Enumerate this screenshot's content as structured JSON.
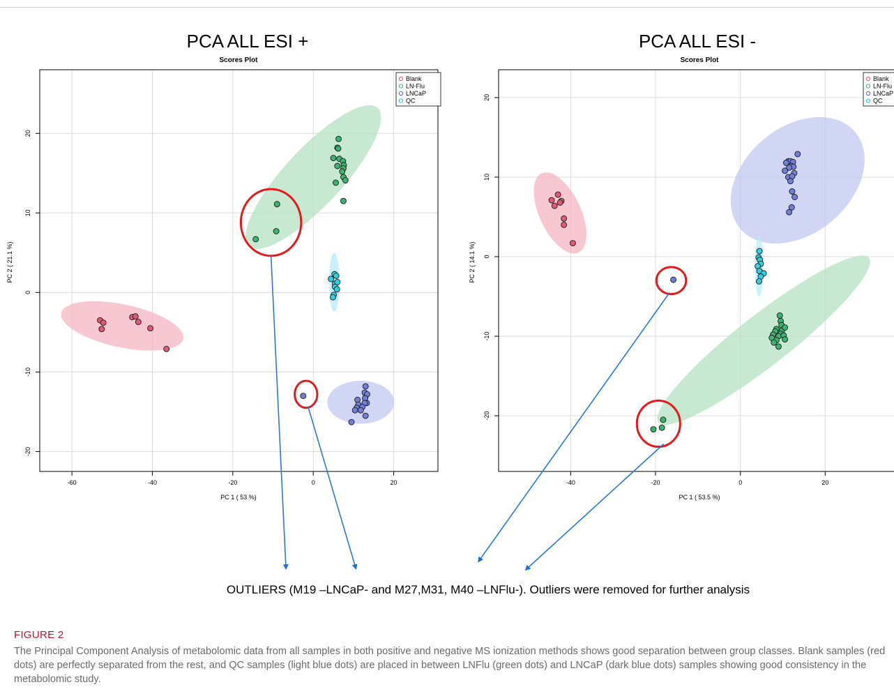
{
  "outliers_note": "OUTLIERS (M19 –LNCaP- and M27,M31, M40 –LNFlu-). Outliers were removed for further analysis",
  "figure": {
    "label": "FIGURE 2",
    "caption": "The Principal Component Analysis of metabolomic data from all samples in both positive and negative MS ionization methods shows good separation between group classes. Blank samples (red dots) are perfectly separated from the rest, and QC samples (light blue dots) are placed in between LNFlu (green dots) and LNCaP (dark blue dots) samples showing good consistency in the metabolomic study."
  },
  "chart_data": [
    {
      "type": "scatter",
      "title": "PCA ALL ESI +",
      "subtitle": "Scores Plot",
      "xlabel": "PC 1 ( 53 %)",
      "ylabel": "PC 2 ( 21.1 %)",
      "xlim": [
        -68,
        31
      ],
      "ylim": [
        -22.5,
        28
      ],
      "xticks": [
        -60,
        -40,
        -20,
        0,
        20
      ],
      "yticks": [
        -20,
        -10,
        0,
        10,
        20
      ],
      "grid": true,
      "legend": {
        "position": "top-right",
        "entries": [
          "Blank",
          "LN-Flu",
          "LNCaP",
          "QC"
        ]
      },
      "colors": {
        "Blank": {
          "point": "#e05a73",
          "ellipse": "#f4b6c2",
          "legend": "#e05a73"
        },
        "LN-Flu": {
          "point": "#3cb371",
          "ellipse": "#b5e2c2",
          "legend": "#3cb371"
        },
        "LNCaP": {
          "point": "#7080d8",
          "ellipse": "#c0c8f0",
          "legend": "#5060d0"
        },
        "QC": {
          "point": "#30d0e0",
          "ellipse": "#b8ecf4",
          "legend": "#20c0d8"
        }
      },
      "ellipses": [
        {
          "series": "Blank",
          "cx": -47.5,
          "cy": -4.2,
          "rx": 15.5,
          "ry": 2.7,
          "angle": -12
        },
        {
          "series": "LN-Flu",
          "cx": 0,
          "cy": 14.5,
          "rx": 23.5,
          "ry": 3.6,
          "angle": 47
        },
        {
          "series": "LNCaP",
          "cx": 11.8,
          "cy": -13.8,
          "rx": 8.3,
          "ry": 2.7,
          "angle": 0
        },
        {
          "series": "QC",
          "cx": 5.2,
          "cy": 1.3,
          "rx": 1.3,
          "ry": 3.7,
          "angle": 0
        }
      ],
      "series": [
        {
          "name": "Blank",
          "points": [
            [
              -53,
              -3.5
            ],
            [
              -52.2,
              -3.8
            ],
            [
              -52.6,
              -4.6
            ],
            [
              -45,
              -3.1
            ],
            [
              -44.2,
              -3
            ],
            [
              -43.5,
              -3.7
            ],
            [
              -40.5,
              -4.5
            ],
            [
              -36.5,
              -7.1
            ]
          ]
        },
        {
          "name": "LN-Flu",
          "points": [
            [
              6.3,
              19.3
            ],
            [
              6,
              18.2
            ],
            [
              6.2,
              18.1
            ],
            [
              5,
              16.9
            ],
            [
              6.5,
              16.8
            ],
            [
              7.4,
              16.5
            ],
            [
              7.6,
              16
            ],
            [
              7.5,
              15.6
            ],
            [
              6,
              15.9
            ],
            [
              7.2,
              15.2
            ],
            [
              7.5,
              14.5
            ],
            [
              8,
              14.1
            ],
            [
              5.6,
              13.8
            ],
            [
              7.5,
              11.5
            ],
            [
              -9,
              11.1
            ],
            [
              -9.2,
              7.7
            ],
            [
              -14.3,
              6.7
            ]
          ]
        },
        {
          "name": "LNCaP",
          "points": [
            [
              13,
              -11.8
            ],
            [
              12.8,
              -12.6
            ],
            [
              13.4,
              -12.8
            ],
            [
              12.9,
              -13.3
            ],
            [
              11,
              -13.5
            ],
            [
              13.3,
              -13.9
            ],
            [
              12.8,
              -13.9
            ],
            [
              11.2,
              -14.1
            ],
            [
              12.2,
              -14.4
            ],
            [
              10.8,
              -14.5
            ],
            [
              11.8,
              -14.8
            ],
            [
              10.4,
              -14.8
            ],
            [
              13,
              -15.5
            ],
            [
              9.5,
              -16.3
            ],
            [
              -2.5,
              -13
            ]
          ]
        },
        {
          "name": "QC",
          "points": [
            [
              5.3,
              2.3
            ],
            [
              5.7,
              2.1
            ],
            [
              4.4,
              1.7
            ],
            [
              5.4,
              1.1
            ],
            [
              6,
              1.3
            ],
            [
              5.4,
              0.7
            ],
            [
              5.9,
              0.4
            ],
            [
              5.1,
              -0.3
            ],
            [
              4.9,
              -0.6
            ]
          ]
        }
      ],
      "outlier_markers": [
        {
          "cx": -10.5,
          "cy": 8.8,
          "rx": 7.5,
          "ry": 4.2
        },
        {
          "cx": -1.8,
          "cy": -12.8,
          "rx": 2.8,
          "ry": 1.7
        }
      ]
    },
    {
      "type": "scatter",
      "title": "PCA ALL ESI -",
      "subtitle": "Scores Plot",
      "xlabel": "PC 1 ( 53.5 %)",
      "ylabel": "PC 2 ( 14.1 %)",
      "xlim": [
        -57,
        40
      ],
      "ylim": [
        -27,
        23.5
      ],
      "xticks": [
        -40,
        -20,
        0,
        20
      ],
      "yticks": [
        -20,
        -10,
        0,
        10,
        20
      ],
      "grid": true,
      "legend": {
        "position": "top-right",
        "entries": [
          "Blank",
          "LN-Flu",
          "LNCaP",
          "QC"
        ]
      },
      "colors": {
        "Blank": {
          "point": "#e05a73",
          "ellipse": "#f4b6c2",
          "legend": "#e05a73"
        },
        "LN-Flu": {
          "point": "#3cb371",
          "ellipse": "#b5e2c2",
          "legend": "#3cb371"
        },
        "LNCaP": {
          "point": "#7080d8",
          "ellipse": "#c0c8f0",
          "legend": "#5060d0"
        },
        "QC": {
          "point": "#30d0e0",
          "ellipse": "#b8ecf4",
          "legend": "#20c0d8"
        }
      },
      "ellipses": [
        {
          "series": "Blank",
          "cx": -42.5,
          "cy": 5.5,
          "rx": 10.3,
          "ry": 2.6,
          "angle": -65
        },
        {
          "series": "LN-Flu",
          "cx": 5.5,
          "cy": -10.5,
          "rx": 31.5,
          "ry": 3.2,
          "angle": 38
        },
        {
          "series": "LNCaP",
          "cx": 13.5,
          "cy": 9.6,
          "rx": 17.7,
          "ry": 6.7,
          "angle": 40
        },
        {
          "series": "QC",
          "cx": 4.4,
          "cy": -1.2,
          "rx": 1,
          "ry": 3.8,
          "angle": 0
        }
      ],
      "series": [
        {
          "name": "Blank",
          "points": [
            [
              -44.5,
              7.1
            ],
            [
              -43,
              7.8
            ],
            [
              -42.2,
              7
            ],
            [
              -42.5,
              6.8
            ],
            [
              -43.8,
              6.4
            ],
            [
              -41.6,
              4.8
            ],
            [
              -41.6,
              4
            ],
            [
              -39.5,
              1.7
            ]
          ]
        },
        {
          "name": "LN-Flu",
          "points": [
            [
              9.3,
              -7.4
            ],
            [
              9.5,
              -8.1
            ],
            [
              9.7,
              -8.6
            ],
            [
              8.5,
              -9.1
            ],
            [
              9.8,
              -9.3
            ],
            [
              10.5,
              -8.9
            ],
            [
              8.2,
              -9.4
            ],
            [
              9.5,
              -9.7
            ],
            [
              7.7,
              -9.8
            ],
            [
              9,
              -10
            ],
            [
              10.2,
              -9.9
            ],
            [
              7.4,
              -10.2
            ],
            [
              8.5,
              -10.5
            ],
            [
              10.5,
              -10.4
            ],
            [
              7.9,
              -10.8
            ],
            [
              9,
              -11.3
            ],
            [
              -18.2,
              -20.5
            ],
            [
              -18.5,
              -21.5
            ],
            [
              -20.5,
              -21.7
            ]
          ]
        },
        {
          "name": "LNCaP",
          "points": [
            [
              13.5,
              12.9
            ],
            [
              11.3,
              12
            ],
            [
              11.8,
              12
            ],
            [
              12.4,
              11.9
            ],
            [
              10.8,
              11.8
            ],
            [
              12,
              11.4
            ],
            [
              12.5,
              11.3
            ],
            [
              11.5,
              11.2
            ],
            [
              10.5,
              10.8
            ],
            [
              12.7,
              10.5
            ],
            [
              11.3,
              10
            ],
            [
              12.2,
              10.1
            ],
            [
              11.8,
              9.5
            ],
            [
              12.2,
              8.2
            ],
            [
              12.8,
              7.5
            ],
            [
              12.1,
              6.2
            ],
            [
              11.5,
              5.6
            ],
            [
              -15.8,
              -2.9
            ]
          ]
        },
        {
          "name": "QC",
          "points": [
            [
              4.5,
              0.7
            ],
            [
              4.3,
              -0.1
            ],
            [
              4.6,
              -0.4
            ],
            [
              4.8,
              -0.9
            ],
            [
              4.1,
              -1.2
            ],
            [
              4.5,
              -1.8
            ],
            [
              5.5,
              -2.1
            ],
            [
              4.8,
              -2.5
            ],
            [
              4.4,
              -3.1
            ]
          ]
        }
      ],
      "outlier_markers": [
        {
          "cx": -16.3,
          "cy": -3,
          "rx": 3.5,
          "ry": 1.7
        },
        {
          "cx": -19.3,
          "cy": -21,
          "rx": 5.1,
          "ry": 2.9
        }
      ]
    }
  ]
}
